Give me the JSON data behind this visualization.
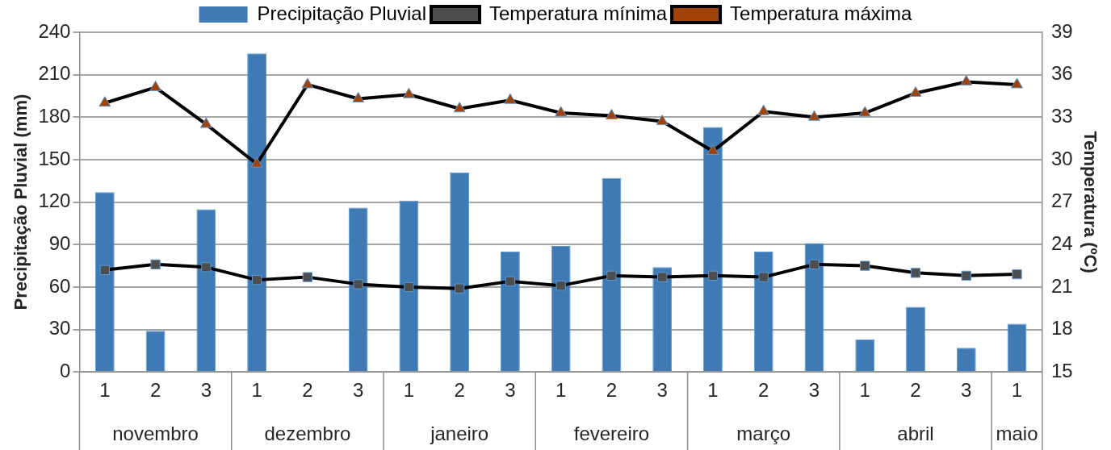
{
  "chart_data": {
    "type": "bar",
    "categories": [
      "1",
      "2",
      "3",
      "1",
      "2",
      "3",
      "1",
      "2",
      "3",
      "1",
      "2",
      "3",
      "1",
      "2",
      "3",
      "1",
      "2",
      "3",
      "1"
    ],
    "annotations": [
      "novembro",
      "dezembro",
      "janeiro",
      "fevereiro",
      "março",
      "abril",
      "maio"
    ],
    "ylabel": "Precipitação Pluvial (mm)",
    "y2label": "Temperatura (ºC)",
    "ylim": [
      0,
      240
    ],
    "yticks": [
      0,
      30,
      60,
      90,
      120,
      150,
      180,
      210,
      240
    ],
    "y2lim": [
      15,
      39
    ],
    "y2ticks": [
      15,
      18,
      21,
      24,
      27,
      30,
      33,
      36,
      39
    ],
    "grid": "y",
    "legend": "top",
    "series": [
      {
        "name": "Precipitação Pluvial",
        "color": "#3f7ab5",
        "values": [
          127,
          29,
          115,
          225,
          0,
          116,
          121,
          141,
          85,
          89,
          137,
          74,
          173,
          85,
          91,
          23,
          46,
          17,
          34
        ]
      },
      {
        "name": "Temperatura mínima",
        "type": "line",
        "axis": "y2",
        "marker": "square",
        "color": "#000000",
        "values": [
          22.2,
          22.6,
          22.4,
          21.5,
          21.7,
          21.2,
          21.0,
          20.9,
          21.4,
          21.1,
          21.8,
          21.7,
          21.8,
          21.7,
          22.6,
          22.5,
          22.0,
          21.8,
          21.9
        ]
      },
      {
        "name": "Temperatura máxima",
        "type": "line",
        "axis": "y2",
        "marker": "triangle",
        "color": "#000000",
        "values": [
          34.0,
          35.1,
          32.5,
          29.7,
          35.3,
          34.3,
          34.6,
          33.6,
          34.2,
          33.3,
          33.1,
          32.7,
          30.6,
          33.4,
          33.0,
          33.3,
          34.7,
          35.5,
          35.3
        ]
      }
    ]
  }
}
